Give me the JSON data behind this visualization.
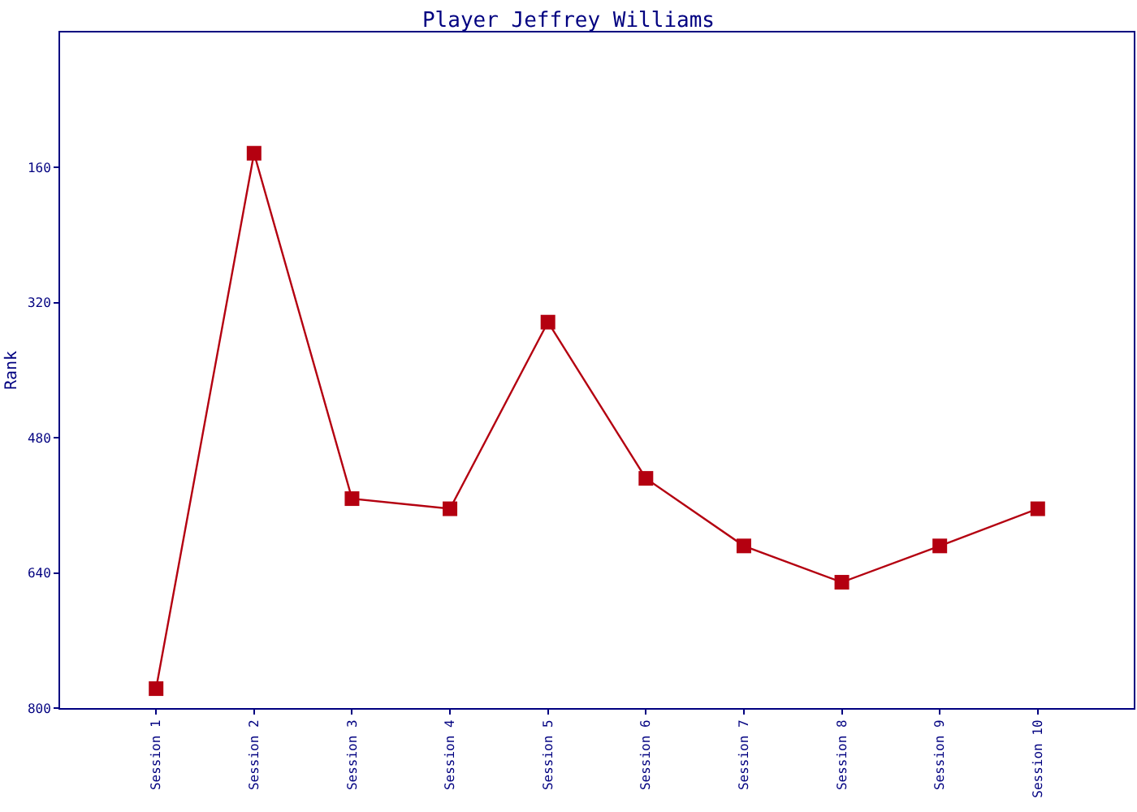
{
  "chart_data": {
    "type": "line",
    "title": "Player Jeffrey Williams",
    "ylabel": "Rank",
    "categories": [
      "Session 1",
      "Session 2",
      "Session 3",
      "Session 4",
      "Session 5",
      "Session 6",
      "Session 7",
      "Session 8",
      "Session 9",
      "Session 10"
    ],
    "series": [
      {
        "color": "#b40010",
        "values": [
          777,
          143,
          552,
          564,
          343,
          528,
          608,
          651,
          608,
          564
        ]
      }
    ],
    "ylim": [
      800,
      0
    ],
    "yticks": [
      160,
      320,
      480,
      640,
      800
    ],
    "grid": false,
    "marker": "square",
    "line_style": "solid"
  }
}
